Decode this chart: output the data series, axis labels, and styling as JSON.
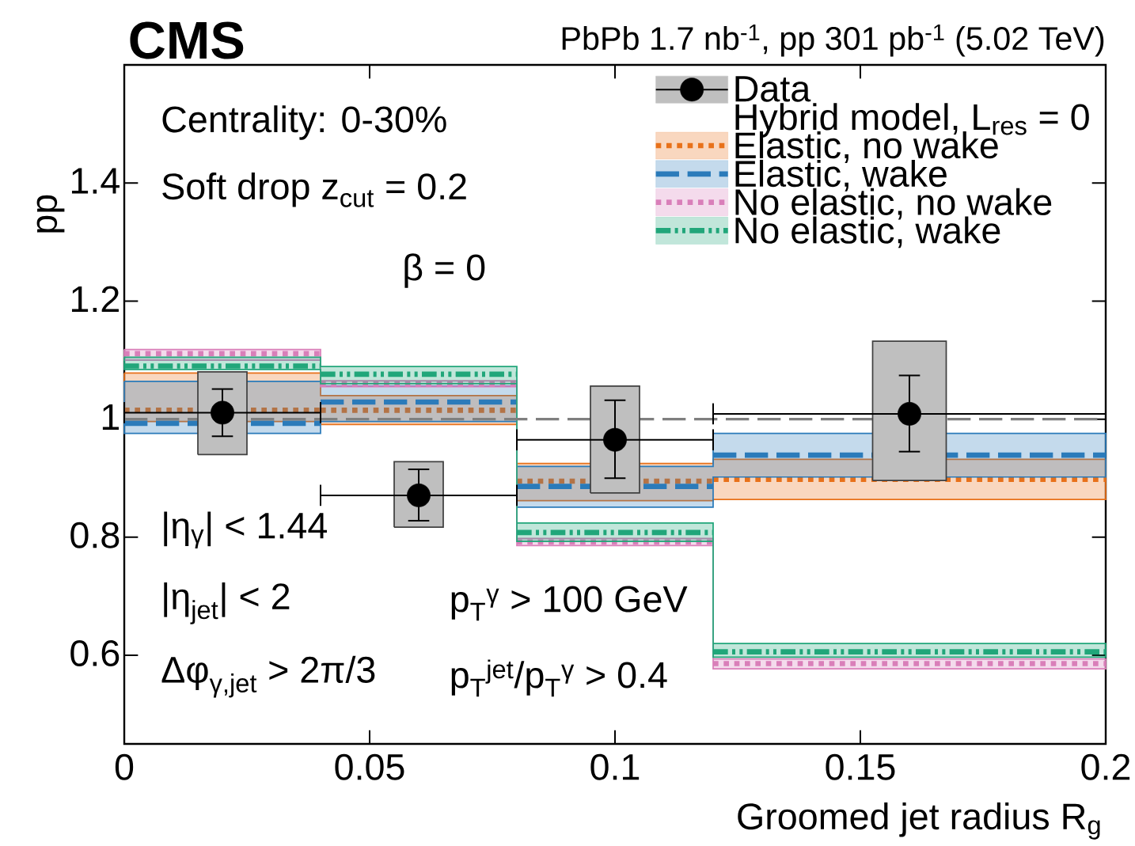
{
  "chart_data": {
    "type": "step",
    "title": "CMS",
    "subtitle": "PbPb 1.7 nb$^{-1}$, pp 301 pb$^{-1}$ (5.02 TeV)",
    "xlabel": "Groomed jet radius R$_{g}$",
    "ylabel": "pp",
    "legend_title": "Hybrid model, L$_{res}$ = 0",
    "annotations": [
      "Centrality: 0-30%",
      "Soft drop z$_{cut}$ = 0.2",
      "β = 0",
      "|η$_{γ}$| < 1.44",
      "|η$_{jet}$| < 2",
      "Δφ$_{γ,jet}$ > 2π/3",
      "p$_{T}$$^{γ}$ > 100 GeV",
      "p$_{T}$$^{jet}$/p$_{T}$$^{γ}$ > 0.4"
    ],
    "xlim": [
      0,
      0.2
    ],
    "ylim": [
      0.45,
      1.6
    ],
    "xticks": [
      0,
      0.05,
      0.1,
      0.15,
      0.2
    ],
    "yticks": [
      0.6,
      0.8,
      1,
      1.2,
      1.4
    ],
    "legend": "top right",
    "ref_lines": [
      {
        "axis": "y",
        "value": 1,
        "color": "#7f7f7f",
        "line_style": "dashed"
      }
    ],
    "series": [
      {
        "name": "Elastic, no wake",
        "color": "#e8711a",
        "line_style": "dotted",
        "x": [
          0,
          0.04,
          0.08,
          0.12,
          0.2
        ],
        "values": [
          1.015,
          1.015,
          0.895,
          0.898,
          0.898
        ],
        "lower": [
          0.996,
          0.991,
          0.862,
          0.864,
          0.864
        ],
        "upper": [
          1.078,
          1.04,
          0.925,
          0.932,
          0.932
        ]
      },
      {
        "name": "Elastic, wake",
        "color": "#2b7bba",
        "line_style": "dashed",
        "x": [
          0,
          0.04,
          0.08,
          0.12,
          0.2
        ],
        "values": [
          0.993,
          1.029,
          0.886,
          0.939,
          0.939
        ],
        "lower": [
          0.976,
          0.996,
          0.851,
          0.902,
          0.902
        ],
        "upper": [
          1.064,
          1.056,
          0.92,
          0.976,
          0.976
        ]
      },
      {
        "name": "No elastic, no wake",
        "color": "#d97fb9",
        "line_style": "dotted",
        "x": [
          0,
          0.04,
          0.08,
          0.12,
          0.2
        ],
        "values": [
          1.111,
          1.06,
          0.792,
          0.586,
          0.586
        ],
        "lower": [
          1.1,
          1.055,
          0.786,
          0.577,
          0.577
        ],
        "upper": [
          1.118,
          1.065,
          0.798,
          0.594,
          0.594
        ]
      },
      {
        "name": "No elastic, wake",
        "color": "#21a67a",
        "line_style": "dashdotted",
        "x": [
          0,
          0.04,
          0.08,
          0.12,
          0.2
        ],
        "values": [
          1.09,
          1.076,
          0.808,
          0.606,
          0.606
        ],
        "lower": [
          1.084,
          1.06,
          0.793,
          0.597,
          0.597
        ],
        "upper": [
          1.105,
          1.089,
          0.824,
          0.62,
          0.62
        ]
      },
      {
        "type": "bar",
        "color": "#bfbfbf",
        "x": [
          0.02,
          0.06,
          0.1,
          0.16
        ],
        "base": [
          0.94,
          0.817,
          0.875,
          0.896
        ],
        "values": [
          0.14,
          0.111,
          0.181,
          0.236
        ]
      },
      {
        "name": "Data",
        "type": "scatter",
        "color": "#000000",
        "marker": "circle",
        "x": [
          0.02,
          0.06,
          0.1,
          0.16
        ],
        "values": [
          1.011,
          0.871,
          0.965,
          1.009
        ],
        "errors": [
          [
            0.971,
            1.051
          ],
          [
            0.828,
            0.915
          ],
          [
            0.9,
            1.032
          ],
          [
            0.945,
            1.074
          ]
        ],
        "xerrors": [
          0.02,
          0.02,
          0.02,
          0.04
        ]
      }
    ]
  }
}
